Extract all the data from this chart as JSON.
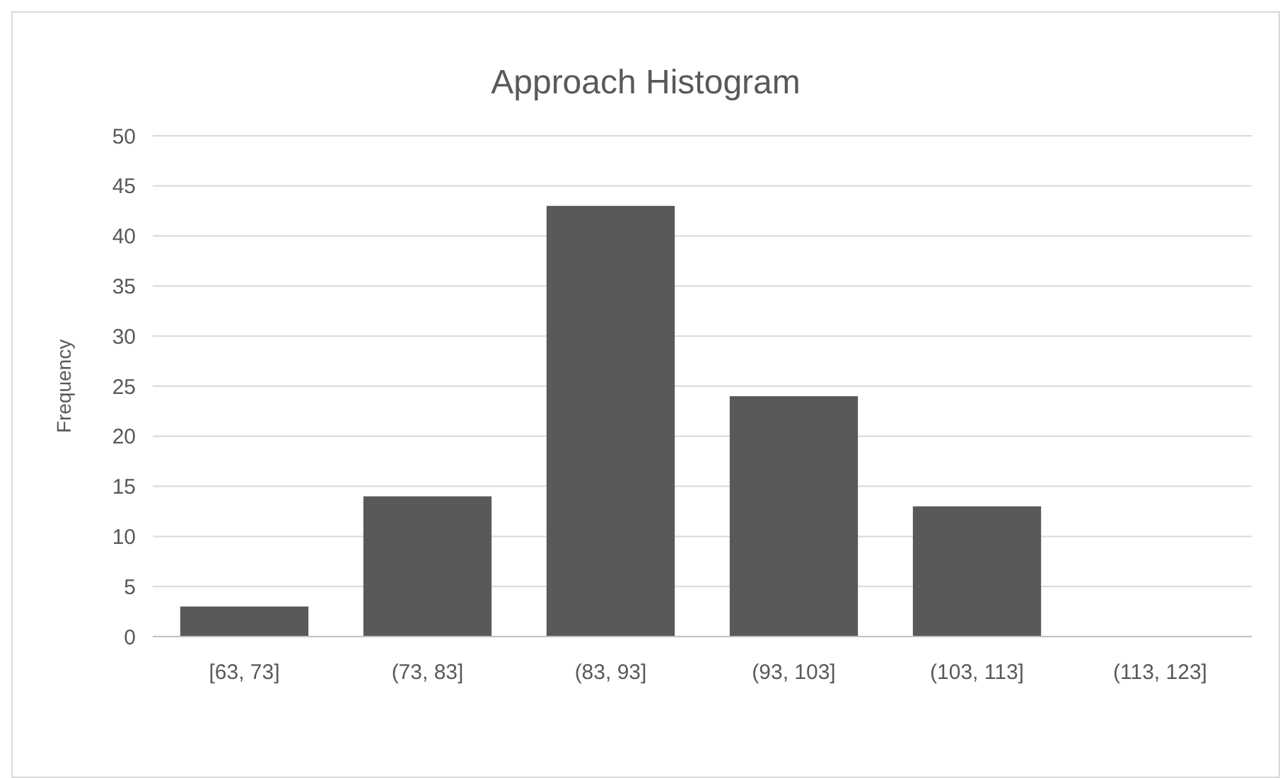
{
  "chart_data": {
    "type": "bar",
    "title": "Approach Histogram",
    "ylabel": "Frequency",
    "categories": [
      "[63, 73]",
      "(73, 83]",
      "(83, 93]",
      "(93, 103]",
      "(103, 113]",
      "(113, 123]"
    ],
    "values": [
      3,
      14,
      43,
      24,
      13,
      0
    ],
    "color": "#595959",
    "ylim": [
      0,
      50
    ],
    "yticks": [
      0,
      5,
      10,
      15,
      20,
      25,
      30,
      35,
      40,
      45,
      50
    ],
    "grid": "y"
  }
}
